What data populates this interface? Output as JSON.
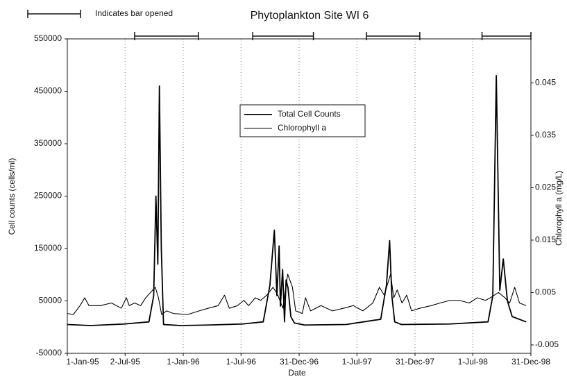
{
  "chart_data": {
    "type": "line",
    "title": "Phytoplankton Site  WI 6",
    "annotation": "Indicates bar opened",
    "x_label": "Date",
    "y_label": "Cell counts (cells/ml)",
    "y2_label": "Chlorophyll a (mg/L)",
    "xlim": [
      "1995-01-01",
      "1998-12-31"
    ],
    "xticks": [
      {
        "value": "1995-01-01",
        "label": "1-Jan-95"
      },
      {
        "value": "1995-07-02",
        "label": "2-Jul-95"
      },
      {
        "value": "1996-01-01",
        "label": "1-Jan-96"
      },
      {
        "value": "1996-07-01",
        "label": "1-Jul-96"
      },
      {
        "value": "1996-12-31",
        "label": "31-Dec-96"
      },
      {
        "value": "1997-07-01",
        "label": "1-Jul-97"
      },
      {
        "value": "1997-12-31",
        "label": "31-Dec-97"
      },
      {
        "value": "1998-07-01",
        "label": "1-Jul-98"
      },
      {
        "value": "1998-12-31",
        "label": "31-Dec-98"
      }
    ],
    "ylim": [
      -50000,
      550000
    ],
    "yticks": [
      -50000,
      50000,
      150000,
      250000,
      350000,
      450000,
      550000
    ],
    "y2lim": [
      -0.0066,
      0.0534
    ],
    "y2ticks": [
      -0.005,
      0.005,
      0.015,
      0.025,
      0.035,
      0.045
    ],
    "grid": true,
    "legend": "top-center",
    "bar_opened": [
      {
        "start": "1995-08-01",
        "end": "1996-02-18"
      },
      {
        "start": "1996-08-07",
        "end": "1997-02-14"
      },
      {
        "start": "1997-07-31",
        "end": "1998-01-15"
      },
      {
        "start": "1998-07-30",
        "end": "1998-12-31"
      }
    ],
    "series": [
      {
        "name": "Total Cell Counts",
        "color": "#000000",
        "x": [
          "1995-01-01",
          "1995-03-15",
          "1995-06-30",
          "1995-09-15",
          "1995-09-30",
          "1995-10-07",
          "1995-10-13",
          "1995-10-18",
          "1995-10-24",
          "1995-10-31",
          "1995-12-22",
          "1996-03-19",
          "1996-07-06",
          "1996-09-09",
          "1996-09-30",
          "1996-10-14",
          "1996-10-22",
          "1996-10-29",
          "1996-11-02",
          "1996-11-09",
          "1996-11-15",
          "1996-11-20",
          "1996-11-26",
          "1996-12-05",
          "1996-12-16",
          "1997-01-17",
          "1997-05-28",
          "1997-09-14",
          "1997-10-02",
          "1997-10-12",
          "1997-10-19",
          "1997-10-28",
          "1997-11-18",
          "1998-04-20",
          "1998-08-18",
          "1998-09-02",
          "1998-09-13",
          "1998-09-24",
          "1998-10-05",
          "1998-10-18",
          "1998-11-02",
          "1998-12-16"
        ],
        "values": [
          5000,
          3000,
          6000,
          10000,
          60000,
          250000,
          120000,
          460000,
          150000,
          5000,
          3000,
          4000,
          6000,
          10000,
          80000,
          185000,
          60000,
          155000,
          40000,
          110000,
          10000,
          90000,
          75000,
          20000,
          8000,
          4000,
          5000,
          15000,
          80000,
          165000,
          60000,
          10000,
          5000,
          6000,
          10000,
          60000,
          480000,
          70000,
          130000,
          50000,
          20000,
          10000
        ]
      },
      {
        "name": "Chlorophyll a",
        "color": "#000000",
        "axis": "y2",
        "x": [
          "1995-01-01",
          "1995-01-20",
          "1995-02-10",
          "1995-02-25",
          "1995-03-10",
          "1995-04-15",
          "1995-05-20",
          "1995-06-20",
          "1995-07-06",
          "1995-07-15",
          "1995-08-01",
          "1995-08-20",
          "1995-09-05",
          "1995-09-20",
          "1995-10-05",
          "1995-10-15",
          "1995-10-25",
          "1995-11-10",
          "1995-12-01",
          "1996-01-15",
          "1996-02-20",
          "1996-03-20",
          "1996-04-20",
          "1996-05-10",
          "1996-05-25",
          "1996-06-20",
          "1996-07-10",
          "1996-07-25",
          "1996-08-15",
          "1996-09-01",
          "1996-09-20",
          "1996-10-10",
          "1996-10-25",
          "1996-11-10",
          "1996-11-25",
          "1996-12-10",
          "1996-12-20",
          "1997-01-10",
          "1997-01-20",
          "1997-02-05",
          "1997-03-10",
          "1997-04-15",
          "1997-05-20",
          "1997-06-20",
          "1997-07-20",
          "1997-08-20",
          "1997-09-10",
          "1997-09-25",
          "1997-10-15",
          "1997-10-25",
          "1997-11-05",
          "1997-11-20",
          "1997-12-05",
          "1997-12-20",
          "1998-01-15",
          "1998-02-20",
          "1998-03-20",
          "1998-04-20",
          "1998-05-20",
          "1998-06-20",
          "1998-07-15",
          "1998-08-10",
          "1998-08-25",
          "1998-09-20",
          "1998-10-10",
          "1998-10-25",
          "1998-11-10",
          "1998-11-25",
          "1998-12-16"
        ],
        "values": [
          0.001,
          0.0008,
          0.0025,
          0.004,
          0.0025,
          0.0025,
          0.003,
          0.002,
          0.004,
          0.0025,
          0.003,
          0.0025,
          0.004,
          0.005,
          0.006,
          0.004,
          0.0008,
          0.0015,
          0.001,
          0.0008,
          0.0015,
          0.002,
          0.0025,
          0.0045,
          0.002,
          0.0025,
          0.0035,
          0.0025,
          0.004,
          0.0035,
          0.0045,
          0.006,
          0.0045,
          0.002,
          0.0085,
          0.006,
          0.0015,
          0.001,
          0.004,
          0.0015,
          0.0025,
          0.0015,
          0.002,
          0.0025,
          0.0015,
          0.003,
          0.006,
          0.0045,
          0.0085,
          0.004,
          0.0055,
          0.003,
          0.0045,
          0.0015,
          0.002,
          0.0025,
          0.003,
          0.0035,
          0.0035,
          0.003,
          0.004,
          0.0035,
          0.004,
          0.005,
          0.004,
          0.003,
          0.006,
          0.003,
          0.0025
        ]
      }
    ]
  }
}
